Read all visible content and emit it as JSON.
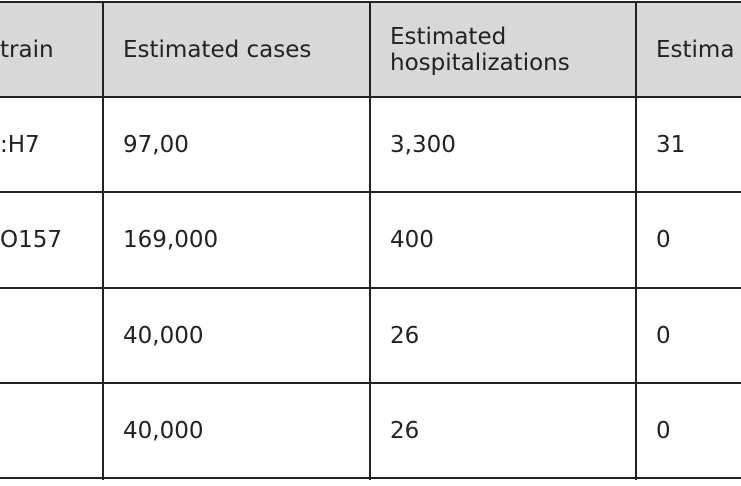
{
  "table": {
    "header": [
      "train",
      "Estimated cases",
      "Estimated hospitalizations",
      "Estima"
    ],
    "rows": [
      [
        ":H7",
        "97,00",
        "3,300",
        "31"
      ],
      [
        "O157",
        "169,000",
        "400",
        "0"
      ],
      [
        "",
        "40,000",
        "26",
        "0"
      ],
      [
        "",
        "40,000",
        "26",
        "0"
      ]
    ]
  }
}
